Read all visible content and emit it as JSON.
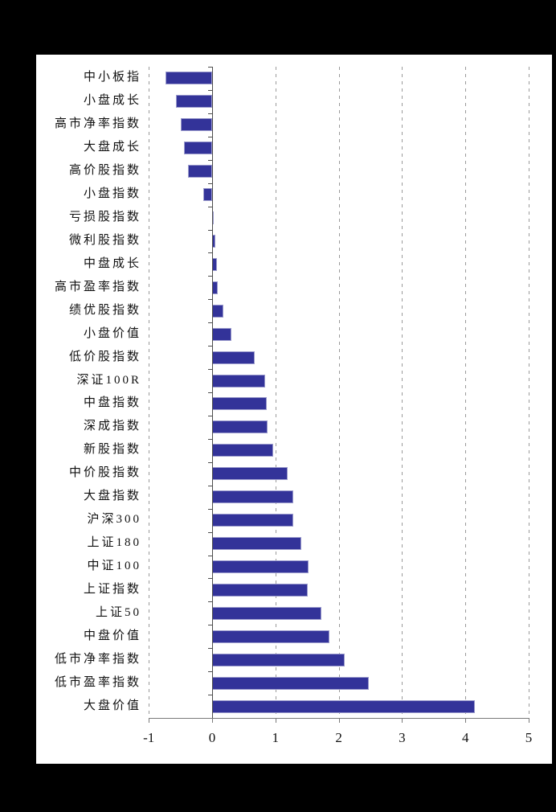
{
  "canvas": {
    "background": "#000000",
    "panel_background": "#ffffff"
  },
  "chart_data": {
    "type": "bar",
    "orientation": "horizontal",
    "title": "",
    "xlabel": "",
    "ylabel": "",
    "xlim": [
      -1,
      5
    ],
    "x_ticks": [
      -1,
      0,
      1,
      2,
      3,
      4,
      5
    ],
    "x_tick_labels": [
      "-1",
      "0",
      "1",
      "2",
      "3",
      "4",
      "5"
    ],
    "grid": "vertical-dashed-at-every-tick-except-zero",
    "legend_position": "none",
    "categories": [
      "中小板指",
      "小盘成长",
      "高市净率指数",
      "大盘成长",
      "高价股指数",
      "小盘指数",
      "亏损股指数",
      "微利股指数",
      "中盘成长",
      "高市盈率指数",
      "绩优股指数",
      "小盘价值",
      "低价股指数",
      "深证100R",
      "中盘指数",
      "深成指数",
      "新股指数",
      "中价股指数",
      "大盘指数",
      "沪深300",
      "上证180",
      "中证100",
      "上证指数",
      "上证50",
      "中盘价值",
      "低市净率指数",
      "低市盈率指数",
      "大盘价值"
    ],
    "values": [
      -0.74,
      -0.57,
      -0.5,
      -0.45,
      -0.38,
      -0.14,
      0.03,
      0.05,
      0.07,
      0.09,
      0.18,
      0.31,
      0.67,
      0.84,
      0.86,
      0.88,
      0.97,
      1.19,
      1.28,
      1.28,
      1.41,
      1.52,
      1.51,
      1.72,
      1.85,
      2.09,
      2.47,
      4.15
    ],
    "colors": {
      "bar_fill": "#333399",
      "bar_border": "#9A9ACC",
      "gridline": "#9a9a9a",
      "category_axis": "#4d4d4d",
      "value_axis": "#7a7a7a",
      "tick": "#7a7a7a",
      "label_text": "#111111"
    }
  }
}
